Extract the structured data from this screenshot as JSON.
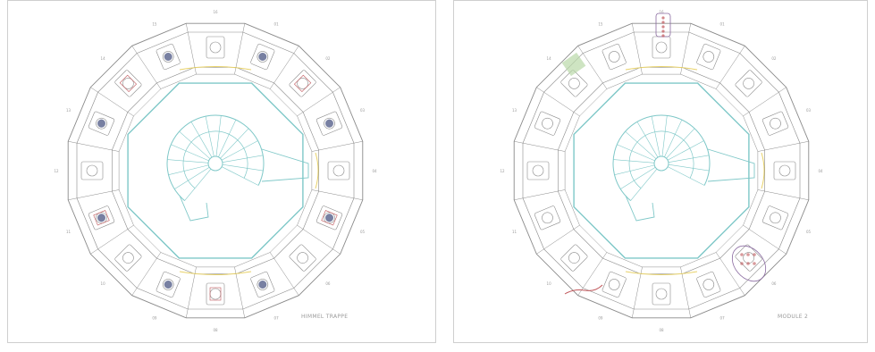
{
  "colors": {
    "ring": "#8a8a8a",
    "octagon": "#7fc8c8",
    "stair": "#7fc8c8",
    "accent_yellow": "#e8d26a",
    "accent_red": "#c0565a",
    "accent_green": "#b9d9a8",
    "accent_purple": "#8a6aa0",
    "text": "#9a9a9a"
  },
  "panels": [
    {
      "label": "HIMMEL TRAPPE",
      "note": "12 exhibit cells around ring, octagonal core with spiral stair"
    },
    {
      "label": "MODULE 2",
      "note": "ring of equipment cells, octagonal core with spiral stair"
    }
  ],
  "ring_numbers": [
    "01",
    "02",
    "03",
    "04",
    "05",
    "06",
    "07",
    "08",
    "09",
    "10",
    "11",
    "12",
    "13",
    "14",
    "15",
    "16"
  ]
}
